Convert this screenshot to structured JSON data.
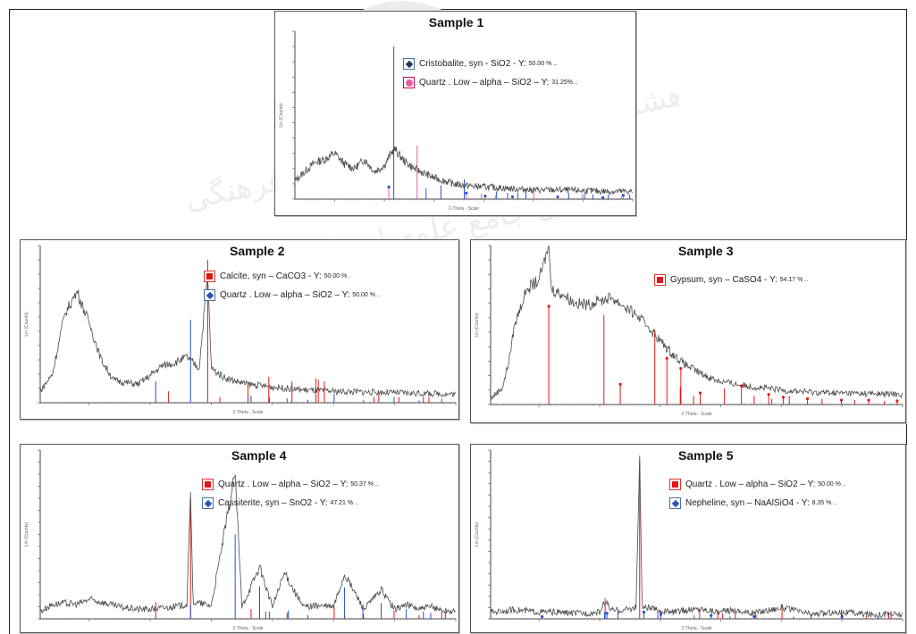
{
  "colors": {
    "trace": "#4a4a4a",
    "blue": "#2a4fd0",
    "red": "#e01818",
    "pink": "#e060a8",
    "frame": "#222222"
  },
  "chart_data": [
    {
      "type": "line",
      "title": "Sample 1",
      "xlabel": "2-Theta - Scale",
      "ylabel": "Lin (Counts)",
      "xlim": [
        2,
        70
      ],
      "ylim": [
        0,
        1100
      ],
      "series": [
        {
          "name": "",
          "x": [
            2,
            4,
            6,
            8,
            10,
            12,
            14,
            16,
            18,
            20,
            21,
            22,
            24,
            26,
            28,
            30,
            32,
            34,
            36,
            40,
            45,
            50,
            55,
            60,
            65,
            70
          ],
          "values": [
            120,
            180,
            240,
            260,
            300,
            230,
            200,
            260,
            180,
            220,
            280,
            330,
            250,
            200,
            170,
            140,
            120,
            100,
            90,
            80,
            70,
            60,
            60,
            55,
            50,
            50
          ]
        }
      ],
      "reference_peaks": [
        {
          "name": "Cristobalite, syn - SiO2 - Y: 50.00 %",
          "x": [
            21.9,
            28.4,
            31.4,
            36.1,
            42.6,
            44.8,
            46.9,
            48.5,
            57.1,
            60.3,
            62.0,
            65.1,
            69.4
          ],
          "values": [
            1000,
            70,
            90,
            130,
            50,
            40,
            40,
            70,
            40,
            30,
            30,
            30,
            30
          ]
        },
        {
          "name": "Quartz . Low – alpha – SiO2 – Y: 31.25% ..",
          "x": [
            20.9,
            26.6,
            36.5,
            39.5,
            40.3,
            42.4,
            45.8,
            50.1,
            54.9,
            59.9,
            64.0,
            67.7,
            68.1
          ],
          "values": [
            80,
            350,
            40,
            35,
            20,
            25,
            15,
            60,
            15,
            35,
            10,
            20,
            25
          ]
        }
      ]
    },
    {
      "type": "line",
      "title": "Sample 2",
      "xlabel": "2-Theta - Scale",
      "ylabel": "Lin (Counts)",
      "xlim": [
        2,
        70
      ],
      "ylim": [
        0,
        1100
      ],
      "series": [
        {
          "name": "",
          "x": [
            2,
            4,
            6,
            8,
            10,
            12,
            14,
            16,
            18,
            20,
            22,
            24,
            26,
            28,
            29.4,
            30,
            32,
            34,
            36,
            38,
            40,
            45,
            50,
            55,
            60,
            65,
            70
          ],
          "values": [
            80,
            200,
            620,
            780,
            560,
            300,
            160,
            140,
            130,
            190,
            260,
            280,
            320,
            240,
            900,
            240,
            180,
            150,
            130,
            120,
            110,
            90,
            80,
            75,
            70,
            65,
            60
          ]
        }
      ],
      "reference_peaks": [
        {
          "name": "Calcite, syn – CaCO3 - Y: 50.00 % .",
          "x": [
            23.0,
            29.4,
            31.4,
            36.0,
            39.4,
            43.2,
            47.1,
            47.5,
            48.5,
            56.6,
            57.4,
            60.7,
            64.7,
            65.6
          ],
          "values": [
            80,
            1000,
            40,
            140,
            180,
            150,
            170,
            160,
            150,
            40,
            60,
            40,
            40,
            40
          ]
        },
        {
          "name": "Quartz . Low – alpha – SiO2 – Y: 50.00 % ..",
          "x": [
            20.9,
            26.6,
            36.5,
            39.5,
            42.4,
            45.8,
            50.1,
            54.9,
            59.9,
            64.0,
            67.7
          ],
          "values": [
            150,
            580,
            50,
            40,
            30,
            20,
            60,
            20,
            40,
            15,
            25
          ]
        }
      ]
    },
    {
      "type": "line",
      "title": "Sample 3",
      "xlabel": "2-Theta - Scale",
      "ylabel": "Lin (Counts)",
      "xlim": [
        2,
        70
      ],
      "ylim": [
        0,
        1100
      ],
      "series": [
        {
          "name": "",
          "x": [
            2,
            4,
            5,
            6,
            8,
            10,
            11.6,
            12,
            14,
            16,
            18,
            20,
            22,
            24,
            26,
            28,
            30,
            32,
            34,
            36,
            38,
            40,
            44,
            50,
            55,
            60,
            65,
            70
          ],
          "values": [
            40,
            120,
            300,
            560,
            800,
            860,
            1100,
            800,
            760,
            700,
            690,
            720,
            740,
            680,
            620,
            540,
            440,
            350,
            280,
            230,
            190,
            160,
            130,
            100,
            85,
            80,
            75,
            70
          ]
        }
      ],
      "reference_peaks": [
        {
          "name": "Gypsum, syn – CaSO4 - Y: 54.17 % ..",
          "x": [
            11.6,
            20.7,
            23.4,
            29.1,
            31.1,
            33.3,
            33.4,
            35.5,
            36.6,
            40.6,
            43.4,
            45.5,
            47.9,
            48.4,
            50.3,
            51.3,
            54.3,
            56.7,
            59.9,
            62.1,
            64.4,
            67.0,
            69.1
          ],
          "values": [
            680,
            620,
            140,
            520,
            320,
            120,
            250,
            60,
            80,
            110,
            130,
            60,
            70,
            40,
            50,
            60,
            40,
            40,
            30,
            30,
            30,
            25,
            25
          ]
        }
      ]
    },
    {
      "type": "line",
      "title": "Sample 4",
      "xlabel": "2-Theta - Scale",
      "ylabel": "Lin (Counts)",
      "xlim": [
        2,
        70
      ],
      "ylim": [
        0,
        1400
      ],
      "series": [
        {
          "name": "",
          "x": [
            2,
            4,
            6,
            8,
            10,
            12,
            14,
            16,
            18,
            20,
            22,
            24,
            26,
            26.6,
            27,
            30,
            33.9,
            35,
            37.9,
            40,
            42,
            45,
            47,
            50,
            51.8,
            55,
            57.8,
            60,
            62,
            64,
            66,
            68,
            70
          ],
          "values": [
            60,
            120,
            130,
            120,
            160,
            140,
            110,
            90,
            80,
            80,
            90,
            100,
            120,
            1050,
            140,
            110,
            1210,
            100,
            430,
            100,
            380,
            100,
            110,
            100,
            370,
            80,
            240,
            80,
            120,
            80,
            100,
            70,
            60
          ]
        }
      ],
      "reference_peaks": [
        {
          "name": "Quartz . Low – alpha – SiO2 – Y: 50.37 % ..",
          "x": [
            20.9,
            26.6,
            36.5,
            39.5,
            42.4,
            45.8,
            50.1,
            54.9,
            59.9,
            64.0,
            67.7,
            68.3
          ],
          "values": [
            140,
            1000,
            80,
            60,
            50,
            30,
            100,
            40,
            70,
            30,
            60,
            60
          ]
        },
        {
          "name": "Cassiterite, syn – SnO2 - Y: 47.21 % ..",
          "x": [
            26.6,
            33.9,
            37.9,
            38.9,
            42.6,
            51.8,
            54.8,
            57.8,
            61.9,
            64.7,
            65.9,
            71.3
          ],
          "values": [
            110,
            700,
            270,
            60,
            70,
            260,
            90,
            130,
            80,
            60,
            50,
            40
          ]
        }
      ]
    },
    {
      "type": "line",
      "title": "Sample 5",
      "xlabel": "2-Theta - Scale",
      "ylabel": "Lin (Counts)",
      "xlim": [
        2,
        70
      ],
      "ylim": [
        0,
        1500
      ],
      "series": [
        {
          "name": "",
          "x": [
            2,
            4,
            6,
            8,
            10,
            12,
            14,
            16,
            18,
            20,
            20.9,
            22,
            24,
            26,
            26.6,
            27,
            30,
            32,
            36.5,
            40,
            42,
            45,
            50,
            55,
            60,
            65,
            70
          ],
          "values": [
            60,
            70,
            80,
            70,
            60,
            60,
            55,
            50,
            50,
            60,
            160,
            70,
            80,
            100,
            1450,
            110,
            70,
            60,
            90,
            60,
            80,
            50,
            100,
            40,
            60,
            40,
            40
          ]
        }
      ],
      "reference_peaks": [
        {
          "name": "Quartz . Low – alpha – SiO2 – Y: 50.00 % ..",
          "x": [
            20.9,
            26.6,
            36.5,
            39.5,
            40.3,
            42.4,
            45.8,
            50.1,
            54.9,
            59.9,
            64.0,
            67.7,
            68.1
          ],
          "values": [
            180,
            1400,
            90,
            80,
            50,
            60,
            40,
            130,
            40,
            80,
            30,
            60,
            70
          ]
        },
        {
          "name": "Nepheline, syn – NaAlSiO4 - Y: 8.35 % ..",
          "x": [
            10.5,
            20.8,
            21.2,
            23.0,
            27.3,
            29.6,
            30.1,
            35.6,
            38.4,
            41.5,
            45.5,
            52.0,
            60.0,
            66.0
          ],
          "values": [
            20,
            60,
            50,
            80,
            60,
            40,
            40,
            30,
            30,
            20,
            20,
            20,
            20,
            20
          ]
        }
      ]
    }
  ],
  "legends": [
    [
      {
        "marker": "diamond-dark",
        "main": "Cristobalite, syn - SiO2 - Y:",
        "small": "50.00 % .."
      },
      {
        "marker": "circle-pink",
        "main": "Quartz . Low – alpha – SiO2 – Y:",
        "small": "31.25% .."
      }
    ],
    [
      {
        "marker": "square-red",
        "main": "Calcite, syn – CaCO3 - Y:",
        "small": "50.00 % ."
      },
      {
        "marker": "diamond-blue",
        "main": "Quartz . Low – alpha – SiO2 – Y:",
        "small": "50.00 % .."
      }
    ],
    [
      {
        "marker": "square-red",
        "main": "Gypsum, syn – CaSO4 - Y:",
        "small": "54.17 % .."
      }
    ],
    [
      {
        "marker": "square-red",
        "main": "Quartz . Low – alpha – SiO2 – Y:",
        "small": "50.37 % .."
      },
      {
        "marker": "diamond-blue",
        "main": "Cassiterite, syn – SnO2 - Y:",
        "small": "47.21 % .."
      }
    ],
    [
      {
        "marker": "square-red",
        "main": "Quartz . Low – alpha – SiO2 – Y:",
        "small": "50.00 % .."
      },
      {
        "marker": "diamond-blue",
        "main": "Nepheline, syn – NaAlSiO4 - Y:",
        "small": "8.35 % .."
      }
    ]
  ]
}
